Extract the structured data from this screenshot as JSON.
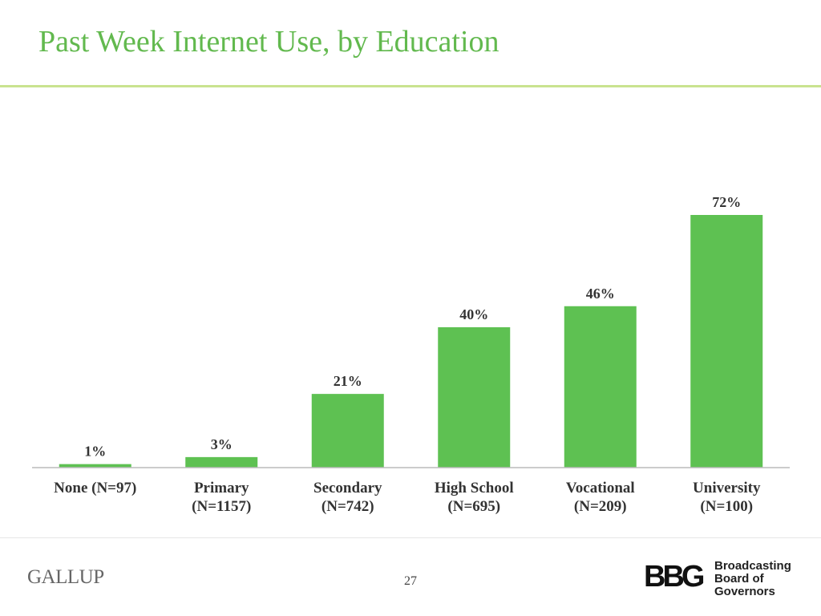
{
  "chart_data": {
    "type": "bar",
    "title": "Past Week Internet Use, by Education",
    "categories": [
      "None (N=97)",
      "Primary\n(N=1157)",
      "Secondary\n(N=742)",
      "High School\n(N=695)",
      "Vocational\n(N=209)",
      "University\n(N=100)"
    ],
    "values": [
      1,
      3,
      21,
      40,
      46,
      72
    ],
    "value_labels": [
      "1%",
      "3%",
      "21%",
      "40%",
      "46%",
      "72%"
    ],
    "color": "#5ec152"
  },
  "footer": {
    "left_logo": "GALLUP",
    "page_number": "27",
    "right_logo_mark": "BBG",
    "right_logo_text": "Broadcasting\nBoard of\nGovernors"
  }
}
